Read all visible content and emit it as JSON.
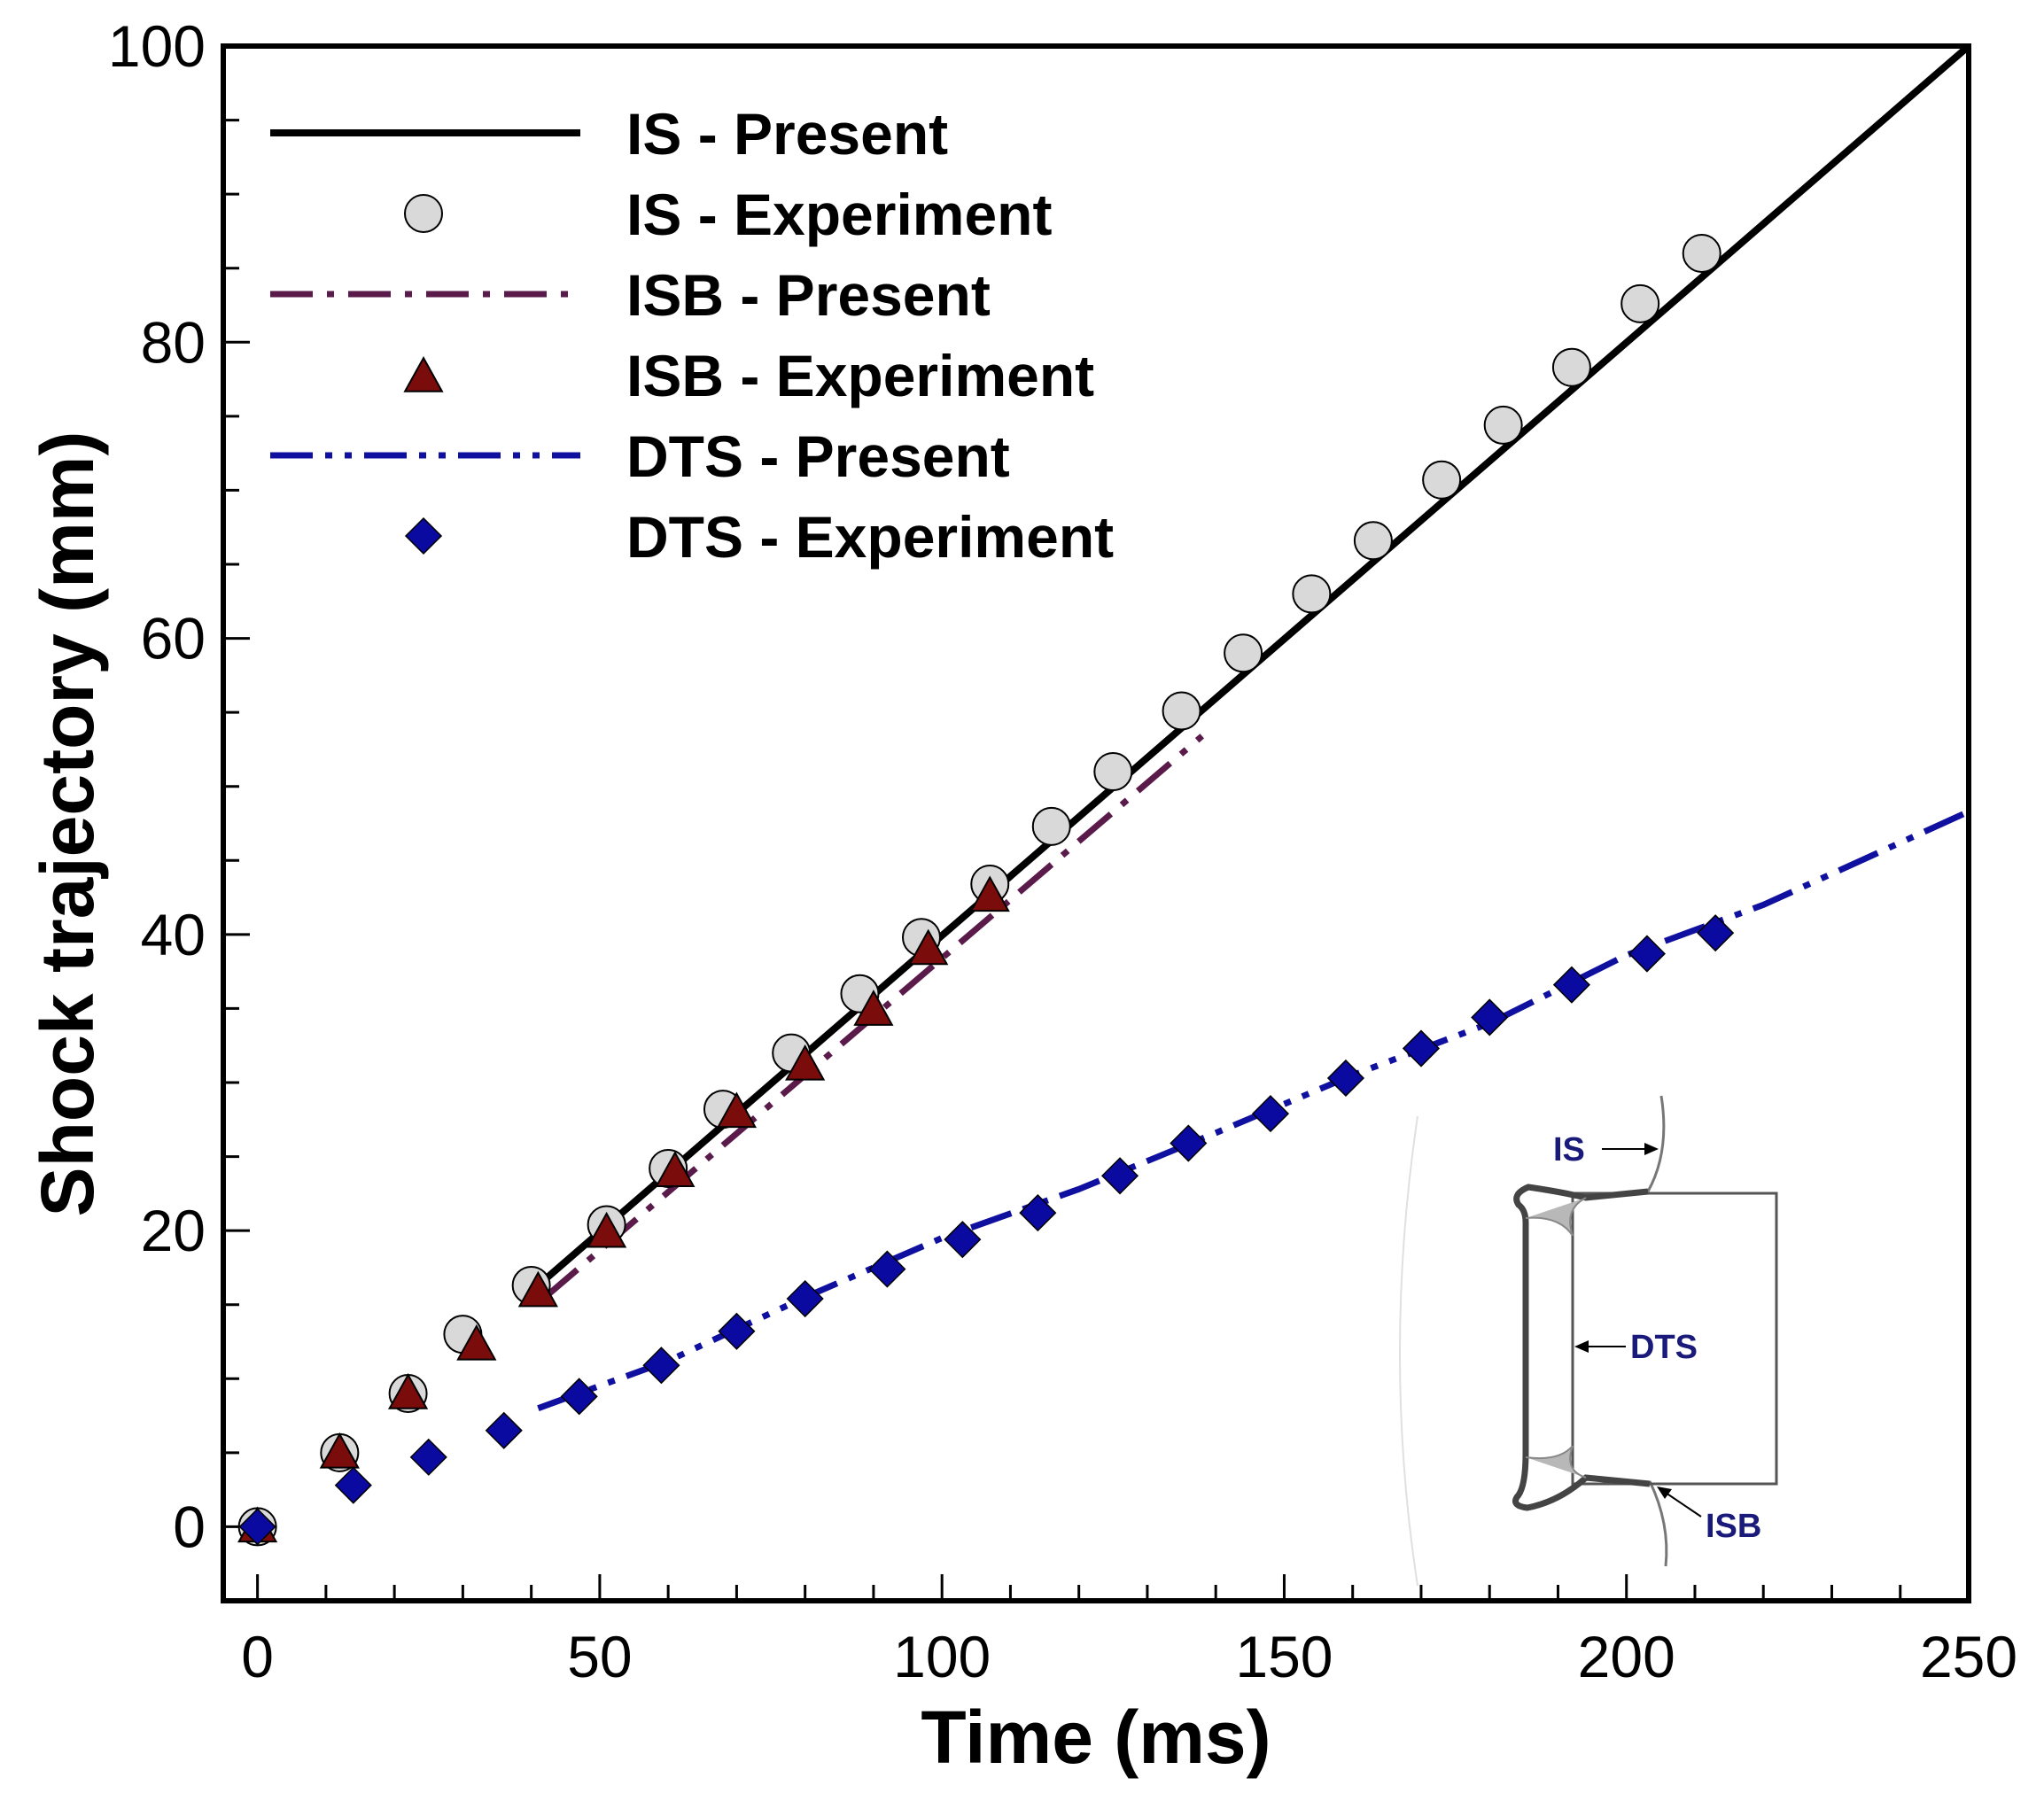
{
  "chart_data": {
    "type": "scatter",
    "title": "",
    "xlabel": "Time (ms)",
    "ylabel": "Shock trajectory (mm)",
    "xlim": [
      -5,
      250
    ],
    "ylim": [
      -5,
      100
    ],
    "x_ticks": [
      0,
      50,
      100,
      150,
      200,
      250
    ],
    "y_ticks": [
      0,
      20,
      40,
      60,
      80,
      100
    ],
    "grid": false,
    "legend_position": "top-left",
    "series": [
      {
        "name": "IS - Present",
        "kind": "line",
        "style": "solid",
        "color": "#000000",
        "x": [
          41,
          250
        ],
        "y": [
          16.3,
          100
        ]
      },
      {
        "name": "IS - Experiment",
        "kind": "marker",
        "marker": "circle",
        "color": "#d9d9d9",
        "x": [
          0,
          12,
          22,
          30,
          40,
          51,
          60,
          68,
          78,
          88,
          97,
          107,
          116,
          125,
          135,
          144,
          154,
          163,
          173,
          182,
          192,
          202,
          211
        ],
        "y": [
          0,
          5,
          9,
          13,
          16.3,
          20.4,
          24.2,
          28.2,
          32,
          36,
          39.8,
          43.4,
          47.3,
          51,
          55.1,
          59,
          63,
          66.6,
          70.7,
          74.4,
          78.3,
          82.6,
          86
        ]
      },
      {
        "name": "ISB - Present",
        "kind": "line",
        "style": "dashdot",
        "color": "#5a1a4a",
        "x": [
          42,
          138
        ],
        "y": [
          15.5,
          53.4
        ]
      },
      {
        "name": "ISB - Experiment",
        "kind": "marker",
        "marker": "triangle",
        "color": "#7a0c0c",
        "x": [
          0,
          12,
          22,
          32,
          41,
          51,
          61,
          70,
          80,
          90,
          98,
          107
        ],
        "y": [
          0,
          5,
          9,
          12.3,
          15.9,
          19.9,
          24,
          28,
          31.2,
          34.9,
          39,
          42.6
        ]
      },
      {
        "name": "DTS - Present",
        "kind": "line",
        "style": "dashdotdot",
        "color": "#1010a0",
        "x": [
          41,
          60,
          80,
          100,
          120,
          140,
          160,
          180,
          200,
          220,
          250
        ],
        "y": [
          8,
          11.2,
          15.5,
          19.5,
          22.8,
          26.6,
          30.5,
          34,
          38.6,
          42,
          48.3
        ]
      },
      {
        "name": "DTS - Experiment",
        "kind": "marker",
        "marker": "diamond",
        "color": "#0a0aa0",
        "x": [
          0,
          14,
          25,
          36,
          47,
          59,
          70,
          80,
          92,
          103,
          114,
          126,
          136,
          148,
          159,
          170,
          180,
          192,
          203,
          213
        ],
        "y": [
          0,
          2.8,
          4.7,
          6.5,
          8.8,
          10.9,
          13.2,
          15.4,
          17.4,
          19.4,
          21.2,
          23.7,
          25.9,
          27.9,
          30.3,
          32.3,
          34.4,
          36.6,
          38.7,
          40.1
        ]
      }
    ],
    "inset": {
      "labels": [
        "IS",
        "DTS",
        "ISB"
      ]
    }
  }
}
